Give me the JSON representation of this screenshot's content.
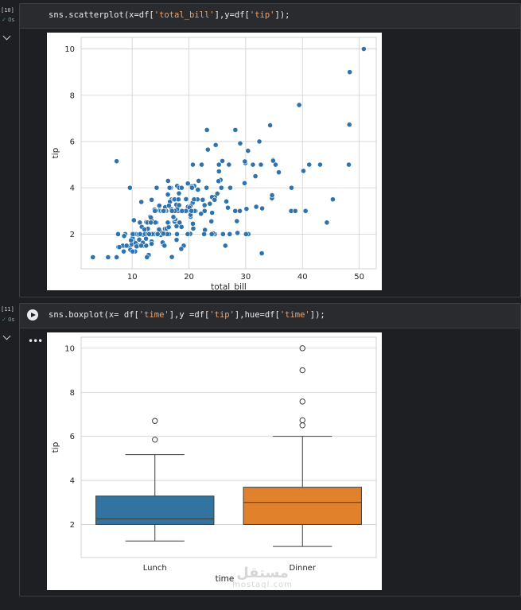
{
  "cells": [
    {
      "exec_count": "[10]",
      "status_time": "0s",
      "code": {
        "prefix": "sns.scatterplot(x=df[",
        "s1": "'total_bill'",
        "mid": "],y=df[",
        "s2": "'tip'",
        "suffix": "]);"
      }
    },
    {
      "exec_count": "[11]",
      "status_time": "0s",
      "code": {
        "prefix": "sns.boxplot(x= df[",
        "s1": "'time'",
        "mid1": "],y =df[",
        "s2": "'tip'",
        "mid2": "],hue=df[",
        "s3": "'time'",
        "suffix": "]);"
      }
    }
  ],
  "watermark": {
    "arabic": "مستقل",
    "latin": "mostaql.com"
  },
  "colors": {
    "lunch": "#3274a1",
    "dinner": "#e1812c",
    "point": "#2e73ac"
  },
  "chart_data": [
    {
      "type": "scatter",
      "xlabel": "total_bill",
      "ylabel": "tip",
      "xlim": [
        1,
        53
      ],
      "ylim": [
        0.5,
        10.5
      ],
      "xticks": [
        10,
        20,
        30,
        40,
        50
      ],
      "yticks": [
        2,
        4,
        6,
        8,
        10
      ],
      "grid": true,
      "points": [
        [
          16.99,
          1.01
        ],
        [
          10.34,
          1.66
        ],
        [
          21.01,
          3.5
        ],
        [
          23.68,
          3.31
        ],
        [
          24.59,
          3.61
        ],
        [
          25.29,
          4.71
        ],
        [
          8.77,
          2.0
        ],
        [
          26.88,
          3.12
        ],
        [
          15.04,
          1.96
        ],
        [
          14.78,
          3.23
        ],
        [
          10.27,
          1.71
        ],
        [
          35.26,
          5.0
        ],
        [
          15.42,
          1.57
        ],
        [
          18.43,
          3.0
        ],
        [
          14.83,
          3.02
        ],
        [
          21.58,
          3.92
        ],
        [
          10.33,
          1.67
        ],
        [
          16.29,
          3.71
        ],
        [
          16.97,
          3.5
        ],
        [
          20.65,
          3.35
        ],
        [
          17.92,
          4.08
        ],
        [
          20.29,
          2.75
        ],
        [
          15.77,
          2.23
        ],
        [
          39.42,
          7.58
        ],
        [
          19.82,
          3.18
        ],
        [
          17.81,
          2.34
        ],
        [
          13.37,
          2.0
        ],
        [
          12.69,
          2.0
        ],
        [
          21.7,
          4.3
        ],
        [
          19.65,
          3.0
        ],
        [
          9.55,
          1.45
        ],
        [
          18.35,
          2.5
        ],
        [
          15.06,
          3.0
        ],
        [
          20.69,
          2.45
        ],
        [
          17.78,
          3.27
        ],
        [
          24.06,
          3.6
        ],
        [
          16.31,
          2.0
        ],
        [
          16.93,
          3.07
        ],
        [
          18.69,
          2.31
        ],
        [
          31.27,
          5.0
        ],
        [
          16.04,
          2.24
        ],
        [
          17.46,
          2.54
        ],
        [
          13.94,
          3.06
        ],
        [
          9.68,
          1.32
        ],
        [
          30.4,
          5.6
        ],
        [
          18.29,
          3.0
        ],
        [
          22.23,
          5.0
        ],
        [
          32.4,
          6.0
        ],
        [
          28.55,
          2.05
        ],
        [
          18.04,
          3.0
        ],
        [
          12.54,
          2.5
        ],
        [
          10.29,
          2.6
        ],
        [
          34.81,
          5.2
        ],
        [
          9.94,
          1.56
        ],
        [
          25.56,
          4.34
        ],
        [
          19.49,
          3.51
        ],
        [
          38.01,
          3.0
        ],
        [
          26.41,
          1.5
        ],
        [
          11.24,
          1.76
        ],
        [
          48.27,
          6.73
        ],
        [
          20.29,
          3.21
        ],
        [
          13.81,
          2.0
        ],
        [
          11.02,
          1.98
        ],
        [
          18.29,
          3.76
        ],
        [
          17.59,
          2.64
        ],
        [
          20.08,
          3.15
        ],
        [
          16.45,
          2.47
        ],
        [
          3.07,
          1.0
        ],
        [
          20.23,
          2.01
        ],
        [
          15.01,
          2.09
        ],
        [
          12.02,
          1.97
        ],
        [
          17.07,
          3.0
        ],
        [
          26.86,
          3.14
        ],
        [
          25.28,
          5.0
        ],
        [
          14.73,
          2.2
        ],
        [
          10.51,
          1.25
        ],
        [
          17.92,
          3.08
        ],
        [
          27.2,
          4.0
        ],
        [
          22.76,
          3.0
        ],
        [
          17.29,
          2.71
        ],
        [
          19.44,
          3.0
        ],
        [
          16.66,
          3.4
        ],
        [
          10.07,
          1.83
        ],
        [
          32.68,
          5.0
        ],
        [
          15.98,
          2.03
        ],
        [
          34.83,
          5.17
        ],
        [
          13.03,
          2.0
        ],
        [
          18.28,
          4.0
        ],
        [
          24.71,
          5.85
        ],
        [
          21.16,
          3.0
        ],
        [
          28.97,
          3.0
        ],
        [
          22.49,
          3.5
        ],
        [
          5.75,
          1.0
        ],
        [
          16.32,
          4.3
        ],
        [
          22.75,
          3.25
        ],
        [
          40.17,
          4.73
        ],
        [
          27.28,
          4.0
        ],
        [
          12.03,
          1.5
        ],
        [
          21.01,
          3.0
        ],
        [
          12.46,
          1.5
        ],
        [
          11.35,
          2.5
        ],
        [
          15.38,
          3.0
        ],
        [
          44.3,
          2.5
        ],
        [
          22.42,
          3.48
        ],
        [
          20.92,
          4.08
        ],
        [
          15.36,
          1.64
        ],
        [
          20.49,
          4.06
        ],
        [
          25.21,
          4.29
        ],
        [
          18.24,
          3.76
        ],
        [
          14.31,
          4.0
        ],
        [
          14.0,
          3.0
        ],
        [
          7.25,
          1.0
        ],
        [
          38.07,
          4.0
        ],
        [
          23.95,
          2.55
        ],
        [
          25.71,
          4.0
        ],
        [
          17.31,
          3.5
        ],
        [
          29.93,
          5.07
        ],
        [
          10.65,
          1.5
        ],
        [
          12.43,
          1.8
        ],
        [
          24.08,
          2.92
        ],
        [
          11.69,
          2.31
        ],
        [
          13.42,
          1.68
        ],
        [
          14.26,
          2.5
        ],
        [
          15.95,
          2.0
        ],
        [
          12.48,
          2.52
        ],
        [
          29.8,
          4.2
        ],
        [
          8.52,
          1.48
        ],
        [
          14.52,
          2.0
        ],
        [
          11.38,
          2.0
        ],
        [
          22.82,
          2.18
        ],
        [
          19.08,
          1.5
        ],
        [
          20.27,
          2.83
        ],
        [
          11.17,
          1.5
        ],
        [
          12.26,
          2.0
        ],
        [
          18.26,
          3.25
        ],
        [
          8.51,
          1.25
        ],
        [
          10.33,
          2.0
        ],
        [
          14.15,
          2.0
        ],
        [
          16.0,
          2.0
        ],
        [
          13.16,
          2.75
        ],
        [
          17.47,
          3.5
        ],
        [
          34.3,
          6.7
        ],
        [
          41.19,
          5.0
        ],
        [
          27.05,
          5.0
        ],
        [
          16.43,
          2.3
        ],
        [
          8.35,
          1.5
        ],
        [
          18.64,
          1.36
        ],
        [
          11.87,
          1.63
        ],
        [
          9.78,
          1.73
        ],
        [
          7.51,
          2.0
        ],
        [
          14.07,
          2.5
        ],
        [
          13.13,
          2.0
        ],
        [
          17.26,
          2.74
        ],
        [
          24.55,
          2.0
        ],
        [
          19.77,
          2.0
        ],
        [
          29.85,
          5.14
        ],
        [
          48.17,
          5.0
        ],
        [
          25.0,
          3.75
        ],
        [
          13.39,
          2.61
        ],
        [
          16.49,
          2.0
        ],
        [
          21.5,
          3.5
        ],
        [
          12.66,
          2.5
        ],
        [
          16.21,
          2.0
        ],
        [
          13.81,
          2.0
        ],
        [
          17.51,
          3.0
        ],
        [
          24.52,
          3.48
        ],
        [
          20.76,
          2.24
        ],
        [
          31.71,
          4.5
        ],
        [
          10.59,
          1.61
        ],
        [
          10.63,
          2.0
        ],
        [
          50.81,
          10.0
        ],
        [
          15.81,
          3.16
        ],
        [
          7.25,
          5.15
        ],
        [
          31.85,
          3.18
        ],
        [
          16.82,
          4.0
        ],
        [
          32.9,
          3.11
        ],
        [
          17.89,
          2.0
        ],
        [
          14.48,
          2.0
        ],
        [
          9.6,
          4.0
        ],
        [
          34.63,
          3.55
        ],
        [
          34.65,
          3.68
        ],
        [
          23.33,
          5.65
        ],
        [
          45.35,
          3.5
        ],
        [
          23.17,
          6.5
        ],
        [
          40.55,
          3.0
        ],
        [
          20.69,
          5.0
        ],
        [
          20.9,
          3.5
        ],
        [
          30.46,
          2.0
        ],
        [
          18.15,
          3.5
        ],
        [
          23.1,
          4.0
        ],
        [
          15.69,
          1.5
        ],
        [
          19.81,
          4.19
        ],
        [
          28.44,
          2.56
        ],
        [
          15.48,
          2.02
        ],
        [
          16.58,
          4.0
        ],
        [
          7.56,
          1.44
        ],
        [
          10.34,
          2.0
        ],
        [
          43.11,
          5.0
        ],
        [
          13.0,
          2.0
        ],
        [
          13.51,
          2.0
        ],
        [
          18.71,
          4.0
        ],
        [
          12.74,
          2.01
        ],
        [
          13.0,
          2.0
        ],
        [
          16.4,
          2.5
        ],
        [
          20.53,
          4.0
        ],
        [
          16.47,
          3.23
        ],
        [
          26.59,
          3.41
        ],
        [
          38.73,
          3.0
        ],
        [
          24.27,
          2.03
        ],
        [
          12.76,
          2.23
        ],
        [
          30.06,
          2.0
        ],
        [
          25.89,
          5.16
        ],
        [
          48.33,
          9.0
        ],
        [
          13.27,
          2.5
        ],
        [
          28.17,
          6.5
        ],
        [
          12.9,
          1.1
        ],
        [
          28.15,
          3.0
        ],
        [
          11.59,
          1.5
        ],
        [
          7.74,
          1.44
        ],
        [
          30.14,
          3.09
        ],
        [
          12.16,
          2.2
        ],
        [
          13.42,
          3.48
        ],
        [
          8.58,
          1.92
        ],
        [
          15.98,
          3.0
        ],
        [
          13.42,
          1.58
        ],
        [
          16.27,
          2.5
        ],
        [
          10.09,
          2.0
        ],
        [
          20.45,
          3.0
        ],
        [
          13.28,
          2.72
        ],
        [
          22.12,
          2.88
        ],
        [
          24.01,
          2.0
        ],
        [
          15.69,
          3.0
        ],
        [
          11.61,
          3.39
        ],
        [
          10.77,
          1.47
        ],
        [
          15.53,
          3.0
        ],
        [
          10.07,
          1.25
        ],
        [
          12.6,
          1.0
        ],
        [
          32.83,
          1.17
        ],
        [
          35.83,
          4.67
        ],
        [
          29.03,
          5.92
        ],
        [
          27.18,
          2.0
        ],
        [
          22.67,
          2.0
        ],
        [
          17.82,
          1.75
        ],
        [
          18.78,
          3.0
        ],
        [
          26.0,
          2.0
        ],
        [
          17.0,
          3.0
        ],
        [
          9.0,
          1.5
        ]
      ]
    },
    {
      "type": "box",
      "xlabel": "time",
      "ylabel": "tip",
      "categories": [
        "Lunch",
        "Dinner"
      ],
      "ylim": [
        0.5,
        10.5
      ],
      "yticks": [
        2,
        4,
        6,
        8,
        10
      ],
      "grid": true,
      "series": [
        {
          "name": "Lunch",
          "whisker_low": 1.25,
          "q1": 2.0,
          "median": 2.25,
          "q3": 3.29,
          "whisker_high": 5.17,
          "outliers": [
            5.85,
            6.7
          ]
        },
        {
          "name": "Dinner",
          "whisker_low": 1.0,
          "q1": 2.0,
          "median": 3.0,
          "q3": 3.69,
          "whisker_high": 6.0,
          "outliers": [
            6.5,
            6.73,
            7.58,
            9.0,
            10.0
          ]
        }
      ]
    }
  ]
}
